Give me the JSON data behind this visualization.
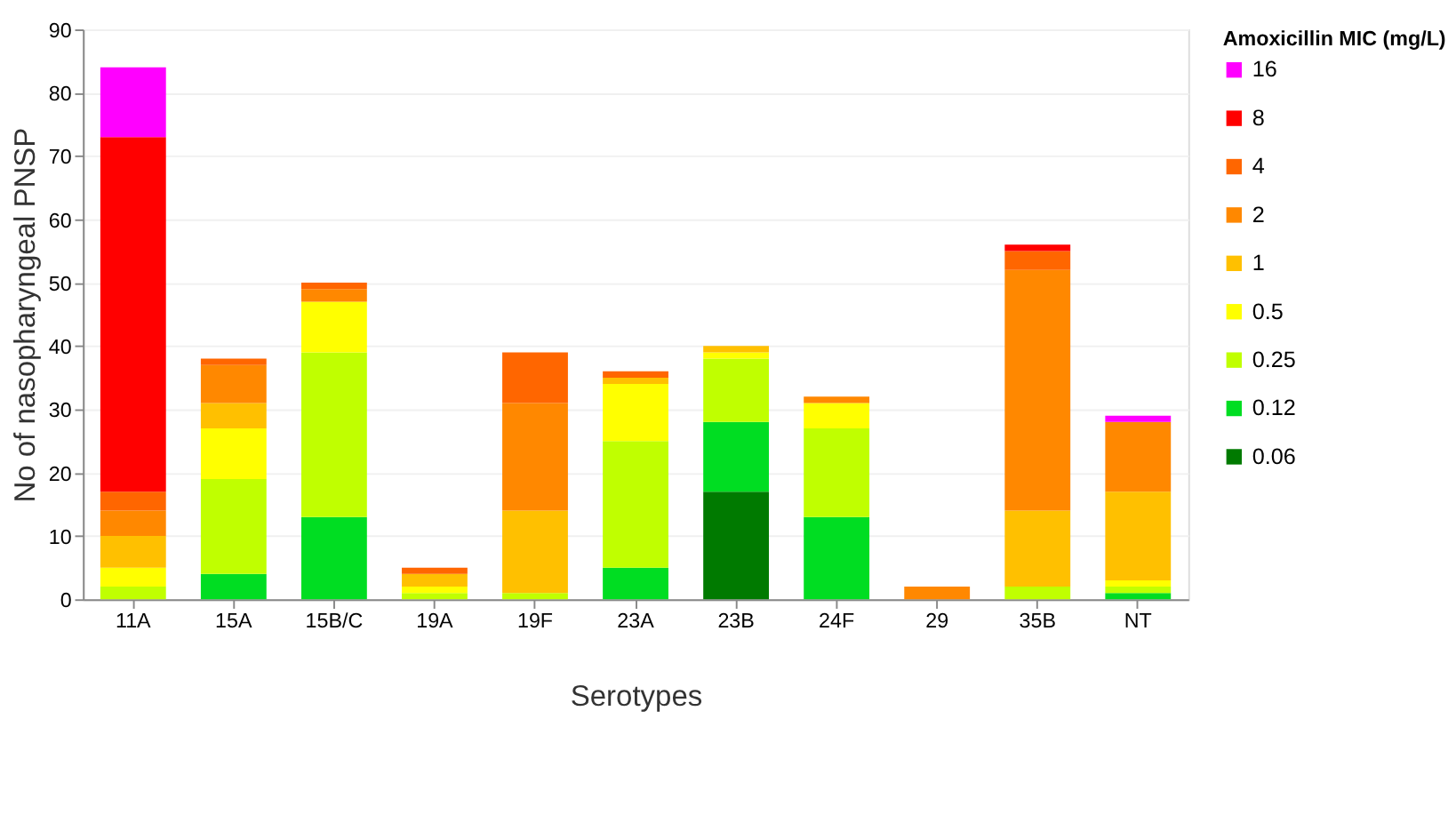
{
  "chart_data": {
    "type": "bar",
    "stacked": true,
    "xlabel": "Serotypes",
    "ylabel": "No of nasopharyngeal PNSP",
    "legend_title": "Amoxicillin MIC (mg/L)",
    "legend": "right",
    "grid": "y",
    "categories": [
      "11A",
      "15A",
      "15B/C",
      "19A",
      "19F",
      "23A",
      "23B",
      "24F",
      "29",
      "35B",
      "NT"
    ],
    "ylim": [
      0,
      90
    ],
    "yticks": [
      0,
      10,
      20,
      30,
      40,
      50,
      60,
      70,
      80,
      90
    ],
    "series": [
      {
        "name": "0.06",
        "color": "#007a00",
        "values": [
          null,
          null,
          null,
          null,
          null,
          null,
          17,
          null,
          null,
          null,
          null
        ]
      },
      {
        "name": "0.12",
        "color": "#00dd22",
        "values": [
          null,
          4,
          13,
          null,
          null,
          5,
          11,
          13,
          null,
          null,
          1
        ]
      },
      {
        "name": "0.25",
        "color": "#c0ff00",
        "values": [
          2,
          15,
          26,
          1,
          1,
          20,
          10,
          14,
          null,
          2,
          1
        ]
      },
      {
        "name": "0.5",
        "color": "#ffff00",
        "values": [
          3,
          8,
          8,
          1,
          null,
          9,
          1,
          4,
          null,
          null,
          1
        ]
      },
      {
        "name": "1",
        "color": "#ffc000",
        "values": [
          5,
          4,
          null,
          2,
          13,
          1,
          1,
          null,
          null,
          12,
          14
        ]
      },
      {
        "name": "2",
        "color": "#ff8800",
        "values": [
          4,
          6,
          2,
          null,
          17,
          null,
          null,
          1,
          2,
          38,
          11
        ]
      },
      {
        "name": "4",
        "color": "#ff6600",
        "values": [
          3,
          1,
          1,
          1,
          8,
          1,
          null,
          null,
          null,
          3,
          null
        ]
      },
      {
        "name": "8",
        "color": "#ff0000",
        "values": [
          56,
          null,
          null,
          null,
          null,
          null,
          null,
          null,
          null,
          1,
          null
        ]
      },
      {
        "name": "16",
        "color": "#ff00ff",
        "values": [
          11,
          null,
          null,
          null,
          null,
          null,
          null,
          null,
          null,
          null,
          1
        ]
      }
    ]
  }
}
